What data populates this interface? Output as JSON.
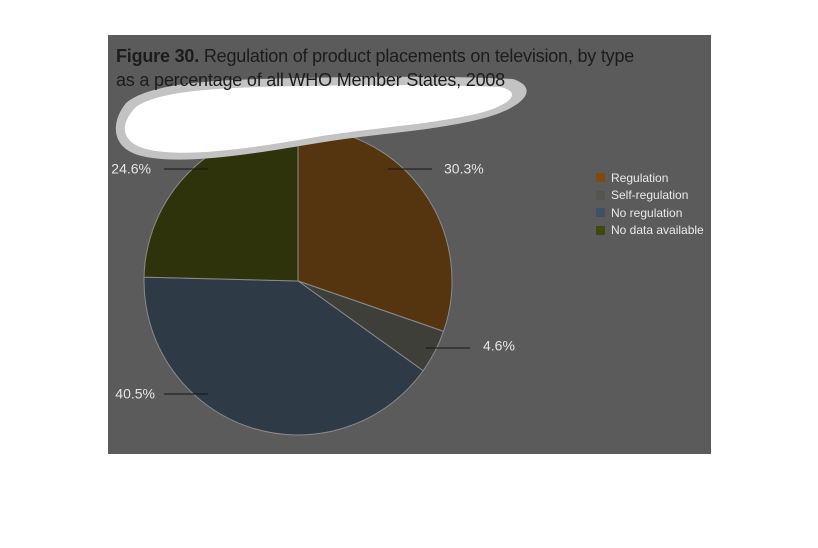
{
  "figure": {
    "label": "Figure 30.",
    "title_line1": " Regulation of product placements on television, by type",
    "title_line2": "as a percentage of all WHO Member States, 2008"
  },
  "chart_data": {
    "type": "pie",
    "title": "Figure 30. Regulation of product placements on television, by type as a percentage of all WHO Member States, 2008",
    "categories": [
      "Regulation",
      "Self-regulation",
      "No regulation",
      "No data available"
    ],
    "values": [
      30.3,
      4.6,
      40.5,
      24.6
    ],
    "labels": [
      "30.3%",
      "4.6%",
      "40.5%",
      "24.6%"
    ],
    "colors": [
      "#55350f",
      "#3f3f3a",
      "#2e3a45",
      "#2e330c"
    ],
    "legend_colors": [
      "#7e4a10",
      "#555550",
      "#3e5264",
      "#3e4810"
    ],
    "legend_position": "right",
    "start_angle_deg": 0,
    "direction": "clockwise"
  }
}
